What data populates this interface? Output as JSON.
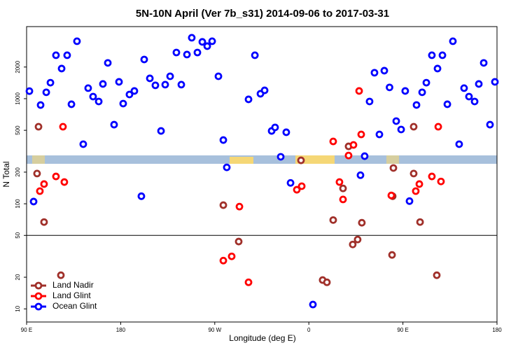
{
  "chart_data": {
    "type": "scatter",
    "title": "5N-10N April (Ver 7b_s31)   2014-09-06 to 2017-03-31",
    "x_label": "Longitude (deg E)",
    "y_label": "N Total",
    "xlim": [
      90,
      540
    ],
    "xticks": [
      {
        "value": 90,
        "label": "90 E"
      },
      {
        "value": 180,
        "label": "180"
      },
      {
        "value": 270,
        "label": "90 W"
      },
      {
        "value": 360,
        "label": "0"
      },
      {
        "value": 450,
        "label": "90 E"
      },
      {
        "value": 540,
        "label": "180"
      }
    ],
    "ylim": [
      7.5,
      4850
    ],
    "yticks": [
      10,
      20,
      50,
      100,
      200,
      500,
      1000,
      2000
    ],
    "log_y": true,
    "reference_line": 50,
    "legend": "lower left",
    "series": [
      {
        "name": "Land Nadir",
        "color": "#a0302a",
        "x": [
          101.4,
          100.0,
          106.7,
          122.8,
          278.2,
          292.9,
          352.5,
          373.2,
          377.3,
          383.3,
          392.7,
          398,
          402,
          406.7,
          410.7,
          440.9,
          440.2,
          439.6,
          460.3,
          460.3,
          466.4,
          482.4
        ],
        "values": [
          541,
          194,
          67,
          20.9,
          97,
          43.7,
          259,
          18.8,
          17.9,
          70,
          140,
          352,
          41,
          45.7,
          66,
          219,
          118,
          32.6,
          541,
          194,
          67,
          20.9
        ]
      },
      {
        "name": "Land Glint",
        "color": "#ff0000",
        "x": [
          102.7,
          106.7,
          118.1,
          124.8,
          126.1,
          278.2,
          286.2,
          293.6,
          302.3,
          348.5,
          353.2,
          383.3,
          389.3,
          392.7,
          398,
          402.7,
          408.1,
          410.1,
          438.9,
          462.3,
          465.7,
          477.7,
          483.8,
          486.4
        ],
        "values": [
          132,
          154,
          182,
          541,
          161,
          28.8,
          31.6,
          94,
          17.9,
          136,
          147,
          392,
          161,
          110,
          288,
          363,
          1184,
          457,
          120,
          132,
          154,
          182,
          541,
          163
        ]
      },
      {
        "name": "Ocean Glint",
        "color": "#0000ff",
        "x": [
          92.7,
          96.7,
          103.4,
          108.8,
          112.8,
          118.1,
          123.5,
          128.8,
          132.9,
          138.2,
          144.2,
          148.9,
          153.6,
          159,
          163,
          167.7,
          173.7,
          178.4,
          182.4,
          188.4,
          193.1,
          199.8,
          202.5,
          207.9,
          213.2,
          218.6,
          222.6,
          227.3,
          233.3,
          238,
          243.4,
          248,
          253.4,
          258.1,
          262.8,
          267.5,
          273.5,
          278.2,
          281.5,
          302.3,
          308.4,
          313.7,
          317.7,
          324.4,
          327.7,
          333.1,
          338.4,
          342.5,
          363.9,
          409.4,
          413.4,
          418.1,
          422.8,
          427.5,
          432.2,
          437.2,
          443.6,
          448.3,
          452.2,
          456.3,
          463,
          468.4,
          472.4,
          477.7,
          483.1,
          487.8,
          492.5,
          497.8,
          503.8,
          508.5,
          513.2,
          518.6,
          522.6,
          527.3,
          533.3,
          538
        ],
        "values": [
          1180,
          105,
          870,
          1150,
          1420,
          2590,
          1935,
          2590,
          885,
          3520,
          369,
          1260,
          1047,
          940,
          1380,
          2190,
          566,
          1445,
          898,
          1096,
          1184,
          118,
          2360,
          1560,
          1340,
          493,
          1360,
          1633,
          2750,
          1360,
          2630,
          3800,
          2750,
          3470,
          3160,
          3520,
          1633,
          404,
          222,
          985,
          2590,
          1114,
          1200,
          493,
          533,
          280,
          479,
          158,
          11,
          187,
          284,
          940,
          1766,
          457,
          1848,
          1280,
          612,
          509,
          1184,
          106,
          871,
          1150,
          1420,
          2590,
          1935,
          2590,
          885,
          3520,
          369,
          1260,
          1047,
          940,
          1380,
          2190,
          566,
          1445
        ]
      }
    ]
  }
}
